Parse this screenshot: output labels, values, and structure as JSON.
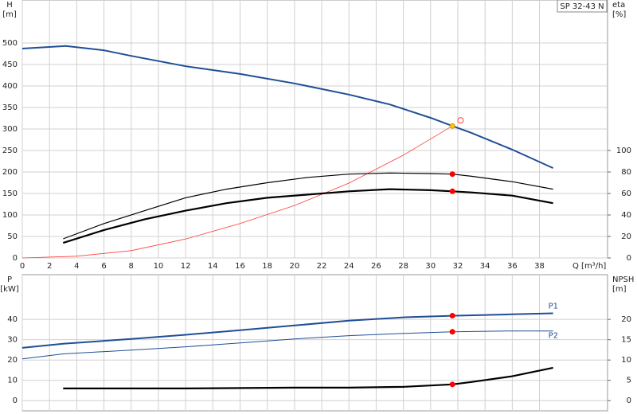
{
  "title": "SP 32-43 N",
  "chart_data": [
    {
      "type": "line",
      "xlabel": "Q [m³/h]",
      "ylabel": "H",
      "yunit": "[m]",
      "y2label": "eta",
      "y2unit": "[%]",
      "xlim": [
        0,
        43
      ],
      "xticks": [
        0,
        2,
        4,
        6,
        8,
        10,
        12,
        14,
        16,
        18,
        20,
        22,
        24,
        26,
        28,
        30,
        32,
        34,
        36,
        38
      ],
      "ylim": [
        0,
        600
      ],
      "yticks": [
        0,
        50,
        100,
        150,
        200,
        250,
        300,
        350,
        400,
        450,
        500
      ],
      "y2lim": [
        0,
        240
      ],
      "y2ticks": [
        0,
        20,
        40,
        60,
        80,
        100
      ],
      "grid": true,
      "series": [
        {
          "color": "#1f4e96",
          "width": 2,
          "x": [
            0,
            3.2,
            6,
            8,
            12,
            16,
            20,
            24,
            27,
            30,
            31.6,
            33,
            36,
            39
          ],
          "values": [
            487,
            493,
            483,
            470,
            446,
            428,
            406,
            380,
            357,
            326,
            307,
            291,
            252,
            209
          ]
        },
        {
          "color": "#ff3b3b",
          "width": 0.8,
          "x": [
            0,
            4,
            8,
            12,
            16,
            20,
            24,
            28,
            31.6
          ],
          "values": [
            0,
            4,
            17,
            44,
            80,
            122,
            174,
            239,
            307
          ]
        },
        {
          "color": "#000000",
          "width": 1.2,
          "axis": "y2",
          "x": [
            3,
            6,
            9,
            12,
            15,
            18,
            21,
            24,
            27,
            30,
            31.6,
            33,
            36,
            39
          ],
          "values": [
            17.8,
            32,
            44,
            56,
            64,
            70,
            75,
            78,
            79,
            78.5,
            78,
            76,
            71,
            64
          ]
        },
        {
          "color": "#000000",
          "width": 2.2,
          "axis": "y2",
          "x": [
            3,
            6,
            9,
            12,
            15,
            18,
            21,
            24,
            27,
            30,
            31.6,
            33,
            36,
            39
          ],
          "values": [
            14,
            26,
            36,
            44,
            51,
            56,
            59,
            62,
            64,
            63,
            62,
            61,
            58,
            51
          ]
        },
        {
          "color": "#ff0000",
          "marker": "dot",
          "axis": "y2",
          "x": [
            31.6,
            31.6
          ],
          "values": [
            78,
            62
          ]
        },
        {
          "color": "#ff3b3b",
          "marker": "open",
          "x": [
            32.2
          ],
          "values": [
            320
          ]
        },
        {
          "color": "#f5c518",
          "marker": "dot",
          "x": [
            31.6
          ],
          "values": [
            307
          ]
        }
      ]
    },
    {
      "type": "line",
      "ylabel": "P",
      "yunit": "[kW]",
      "y2label": "NPSH",
      "y2unit": "[m]",
      "xlim": [
        0,
        43
      ],
      "xticks": [
        0,
        2,
        4,
        6,
        8,
        10,
        12,
        14,
        16,
        18,
        20,
        22,
        24,
        26,
        28,
        30,
        32,
        34,
        36,
        38
      ],
      "ylim": [
        -5,
        62
      ],
      "yticks": [
        0,
        10,
        20,
        30,
        40
      ],
      "y2lim": [
        -2.5,
        31
      ],
      "y2ticks": [
        0,
        5,
        10,
        15,
        20
      ],
      "grid": true,
      "series": [
        {
          "name": "P1",
          "color": "#1f4e96",
          "width": 2,
          "x": [
            0,
            3,
            8,
            12,
            16,
            20,
            24,
            28,
            31.6,
            36,
            39
          ],
          "values": [
            26,
            28,
            30.4,
            32.4,
            34.7,
            37,
            39.4,
            41,
            41.8,
            42.5,
            43
          ]
        },
        {
          "name": "P2",
          "color": "#1f4e96",
          "width": 1,
          "x": [
            0,
            3,
            8,
            12,
            16,
            20,
            24,
            28,
            31.6,
            36,
            39
          ],
          "values": [
            20.6,
            23,
            24.9,
            26.5,
            28.4,
            30.4,
            32,
            33.1,
            33.9,
            34.3,
            34.3
          ]
        },
        {
          "color": "#000000",
          "width": 2.2,
          "axis": "y2",
          "x": [
            3,
            12,
            20,
            24,
            28,
            31.6,
            33,
            36,
            39
          ],
          "values": [
            3,
            3,
            3.2,
            3.2,
            3.4,
            4,
            4.6,
            6,
            8.1
          ]
        },
        {
          "color": "#ff0000",
          "marker": "dot",
          "x": [
            31.6,
            31.6
          ],
          "values": [
            41.8,
            33.9
          ]
        },
        {
          "color": "#ff0000",
          "marker": "dot",
          "axis": "y2",
          "x": [
            31.6
          ],
          "values": [
            4
          ]
        }
      ]
    }
  ]
}
